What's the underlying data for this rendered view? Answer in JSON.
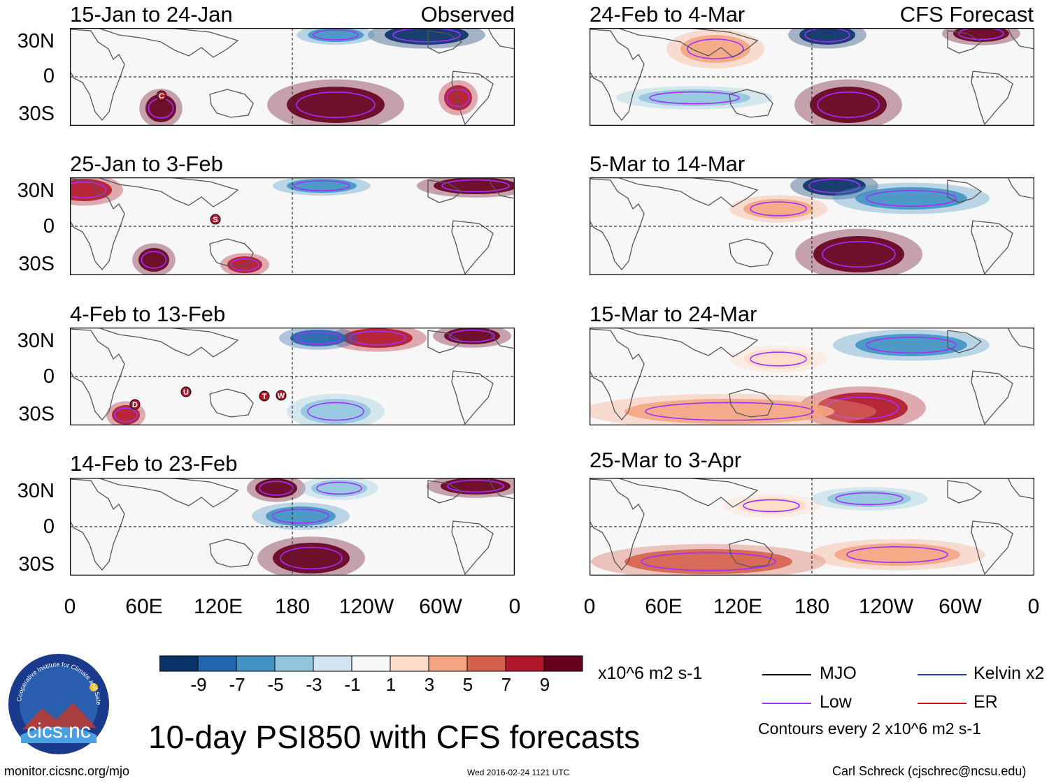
{
  "colors": {
    "neg9": "#0a3268",
    "neg7": "#2166ac",
    "neg5": "#4393c3",
    "neg3": "#92c5de",
    "neg1": "#d1e5f0",
    "zero": "#f7f7f7",
    "pos1": "#fddbc7",
    "pos3": "#f4a582",
    "pos5": "#d6604d",
    "pos7": "#b2182b",
    "pos9": "#67001f",
    "low_contour": "#a030ff",
    "mjo": "#000000",
    "kelvin": "#2040d0",
    "er": "#d01010"
  },
  "observed_label": "Observed",
  "forecast_label": "CFS Forecast",
  "panels": {
    "left": [
      {
        "title": "15-Jan to 24-Jan",
        "storms": [
          "C"
        ]
      },
      {
        "title": "25-Jan to 3-Feb",
        "storms": [
          "S"
        ]
      },
      {
        "title": "4-Feb to 13-Feb",
        "storms": [
          "D",
          "U",
          "T",
          "W"
        ]
      },
      {
        "title": "14-Feb to 23-Feb",
        "storms": []
      }
    ],
    "right": [
      {
        "title": "24-Feb to 4-Mar"
      },
      {
        "title": "5-Mar to 14-Mar"
      },
      {
        "title": "15-Mar to 24-Mar"
      },
      {
        "title": "25-Mar to 3-Apr"
      }
    ]
  },
  "lat_labels": [
    "30N",
    "0",
    "30S"
  ],
  "lon_labels": [
    "0",
    "60E",
    "120E",
    "180",
    "120W",
    "60W",
    "0"
  ],
  "colorbar": {
    "ticks": [
      "-9",
      "-7",
      "-5",
      "-3",
      "-1",
      "1",
      "3",
      "5",
      "7",
      "9"
    ],
    "units": "x10^6 m2 s-1"
  },
  "legend": {
    "mjo": "MJO",
    "low": "Low",
    "kelvin": "Kelvin x2",
    "er": "ER",
    "contours_note": "Contours every 2 x10^6 m2 s-1"
  },
  "main_title": "10-day PSI850 with CFS forecasts",
  "logo_text": "cics.nc",
  "logo_ring_text": "Cooperative Institute for Climate and Satellites",
  "footer": {
    "url": "monitor.cicsnc.org/mjo",
    "timestamp": "Wed 2016-02-24 1121 UTC",
    "author": "Carl Schreck (cjschrec@ncsu.edu)"
  }
}
